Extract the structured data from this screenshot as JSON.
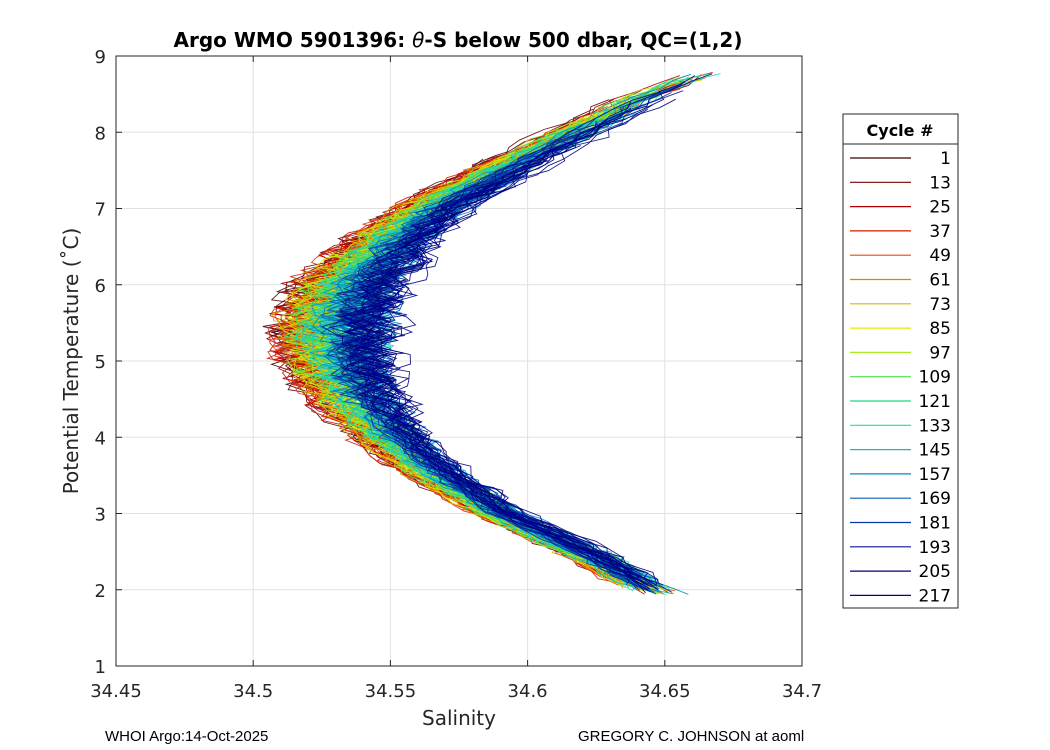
{
  "chart_data": {
    "type": "line",
    "title": "Argo WMO 5901396: θ-S below 500 dbar,  QC=(1,2)",
    "title_parts": {
      "prefix": "Argo WMO 5901396: ",
      "theta": "θ",
      "suffix": "-S below 500 dbar,  QC=(1,2)"
    },
    "xlabel": "Salinity",
    "ylabel": "Potential Temperature (˚C)",
    "xlim": [
      34.45,
      34.7
    ],
    "ylim": [
      1,
      9
    ],
    "xticks": [
      "34.45",
      "34.5",
      "34.55",
      "34.6",
      "34.65",
      "34.7"
    ],
    "yticks": [
      "1",
      "2",
      "3",
      "4",
      "5",
      "6",
      "7",
      "8",
      "9"
    ],
    "grid": true,
    "legend_position": "right",
    "legend_title": "Cycle #",
    "legend_entries": [
      "1",
      "13",
      "25",
      "37",
      "49",
      "61",
      "73",
      "85",
      "97",
      "109",
      "121",
      "133",
      "145",
      "157",
      "169",
      "181",
      "193",
      "205",
      "217"
    ],
    "legend_colors": [
      "#3a0000",
      "#7a0000",
      "#b00000",
      "#d81800",
      "#e84810",
      "#d88800",
      "#d8b800",
      "#e8e800",
      "#a8e820",
      "#50e050",
      "#20d888",
      "#20d8c0",
      "#10b8d8",
      "#0888c0",
      "#0860b0",
      "#0838a8",
      "#081890",
      "#000070",
      "#0000a0"
    ],
    "envelope": {
      "description": "theta-S curves per cycle: salinity minimum near 5.5 C, approximate typical path",
      "theta": [
        1.95,
        2.5,
        3.0,
        3.5,
        4.0,
        4.5,
        5.0,
        5.5,
        6.0,
        6.5,
        7.0,
        7.5,
        8.0,
        8.5,
        8.8
      ],
      "salinity_early_cycles": [
        34.645,
        34.615,
        34.585,
        34.56,
        34.54,
        34.525,
        34.515,
        34.515,
        34.52,
        34.535,
        34.555,
        34.58,
        34.61,
        34.64,
        34.665
      ],
      "salinity_late_cycles": [
        34.65,
        34.625,
        34.595,
        34.575,
        34.56,
        34.55,
        34.545,
        34.545,
        34.55,
        34.56,
        34.575,
        34.6,
        34.625,
        34.65,
        34.668
      ]
    }
  },
  "footer": {
    "left": "WHOI Argo:14-Oct-2025",
    "right": "GREGORY C. JOHNSON at aoml"
  }
}
